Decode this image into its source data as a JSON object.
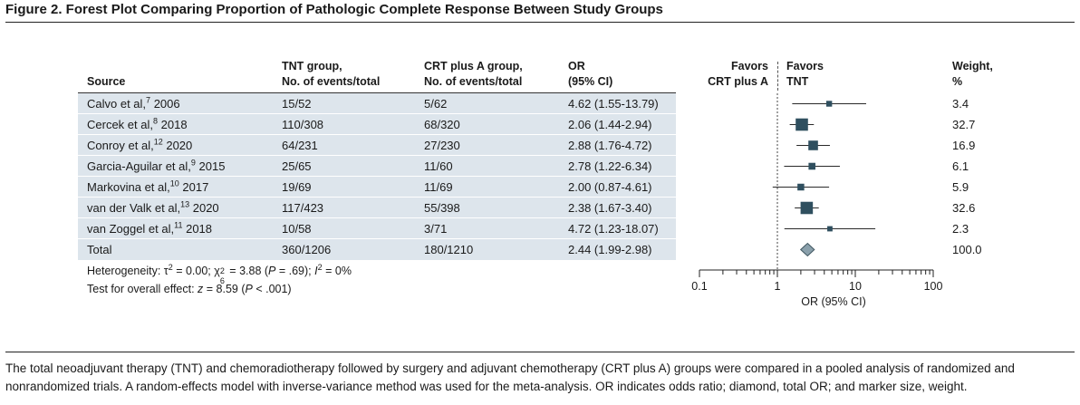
{
  "title": "Figure 2. Forest Plot Comparing Proportion of Pathologic Complete Response Between Study Groups",
  "headers": {
    "source": "Source",
    "tnt_1": "TNT group,",
    "tnt_2": "No. of events/total",
    "crt_1": "CRT plus A group,",
    "crt_2": "No. of events/total",
    "or_1": "OR",
    "or_2": "(95% CI)",
    "favors_left_1": "Favors",
    "favors_left_2": "CRT plus A",
    "favors_right_1": "Favors",
    "favors_right_2": "TNT",
    "weight_1": "Weight,",
    "weight_2": "%"
  },
  "chart_data": {
    "type": "forest",
    "x_scale": "log",
    "xlim": [
      0.1,
      100
    ],
    "xticks": [
      "0.1",
      "1",
      "10",
      "100"
    ],
    "xlabel": "OR (95% CI)",
    "null_line": 1,
    "studies": [
      {
        "source": "Calvo et al,",
        "ref": "7",
        "year": "2006",
        "tnt": "15/52",
        "crt": "5/62",
        "or_text": "4.62 (1.55-13.79)",
        "or": 4.62,
        "lo": 1.55,
        "hi": 13.79,
        "weight": 3.4,
        "weight_text": "3.4"
      },
      {
        "source": "Cercek et al,",
        "ref": "8",
        "year": "2018",
        "tnt": "110/308",
        "crt": "68/320",
        "or_text": "2.06 (1.44-2.94)",
        "or": 2.06,
        "lo": 1.44,
        "hi": 2.94,
        "weight": 32.7,
        "weight_text": "32.7"
      },
      {
        "source": "Conroy et al,",
        "ref": "12",
        "year": "2020",
        "tnt": "64/231",
        "crt": "27/230",
        "or_text": "2.88 (1.76-4.72)",
        "or": 2.88,
        "lo": 1.76,
        "hi": 4.72,
        "weight": 16.9,
        "weight_text": "16.9"
      },
      {
        "source": "Garcia-Aguilar et al,",
        "ref": "9",
        "year": "2015",
        "tnt": "25/65",
        "crt": "11/60",
        "or_text": "2.78 (1.22-6.34)",
        "or": 2.78,
        "lo": 1.22,
        "hi": 6.34,
        "weight": 6.1,
        "weight_text": "6.1"
      },
      {
        "source": "Markovina et al,",
        "ref": "10",
        "year": "2017",
        "tnt": "19/69",
        "crt": "11/69",
        "or_text": "2.00 (0.87-4.61)",
        "or": 2.0,
        "lo": 0.87,
        "hi": 4.61,
        "weight": 5.9,
        "weight_text": "5.9"
      },
      {
        "source": "van der Valk et al,",
        "ref": "13",
        "year": "2020",
        "tnt": "117/423",
        "crt": "55/398",
        "or_text": "2.38 (1.67-3.40)",
        "or": 2.38,
        "lo": 1.67,
        "hi": 3.4,
        "weight": 32.6,
        "weight_text": "32.6"
      },
      {
        "source": "van Zoggel et al,",
        "ref": "11",
        "year": "2018",
        "tnt": "10/58",
        "crt": "3/71",
        "or_text": "4.72 (1.23-18.07)",
        "or": 4.72,
        "lo": 1.23,
        "hi": 18.07,
        "weight": 2.3,
        "weight_text": "2.3"
      }
    ],
    "total": {
      "source": "Total",
      "tnt": "360/1206",
      "crt": "180/1210",
      "or_text": "2.44 (1.99-2.98)",
      "or": 2.44,
      "lo": 1.99,
      "hi": 2.98,
      "weight_text": "100.0"
    },
    "colors": {
      "marker": "#2f4f5f",
      "diamond": "#8aa0ab",
      "shade": "#dde5ec"
    }
  },
  "footer": {
    "heterogeneity_label": "Heterogeneity: τ",
    "tau_exp": "2",
    "tau_val": " = 0.00; χ",
    "chi_sup": "2",
    "chi_sub": "6",
    "chi_val": " = 3.88 (",
    "p1_sym": "P",
    "p1_val": " = .69); ",
    "i_sym": "I",
    "i_exp": "2",
    "i_val": " = 0%",
    "overall_label": "Test for overall effect: ",
    "z_sym": "z",
    "z_val": " = 8.59 (",
    "p2_sym": "P",
    "p2_val": " < .001)"
  },
  "caption": "The total neoadjuvant therapy (TNT) and chemoradiotherapy followed by surgery and adjuvant chemotherapy (CRT plus A) groups were compared in a pooled analysis of randomized and nonrandomized trials. A random-effects model with inverse-variance method was used for the meta-analysis. OR indicates odds ratio; diamond, total OR; and marker size, weight."
}
